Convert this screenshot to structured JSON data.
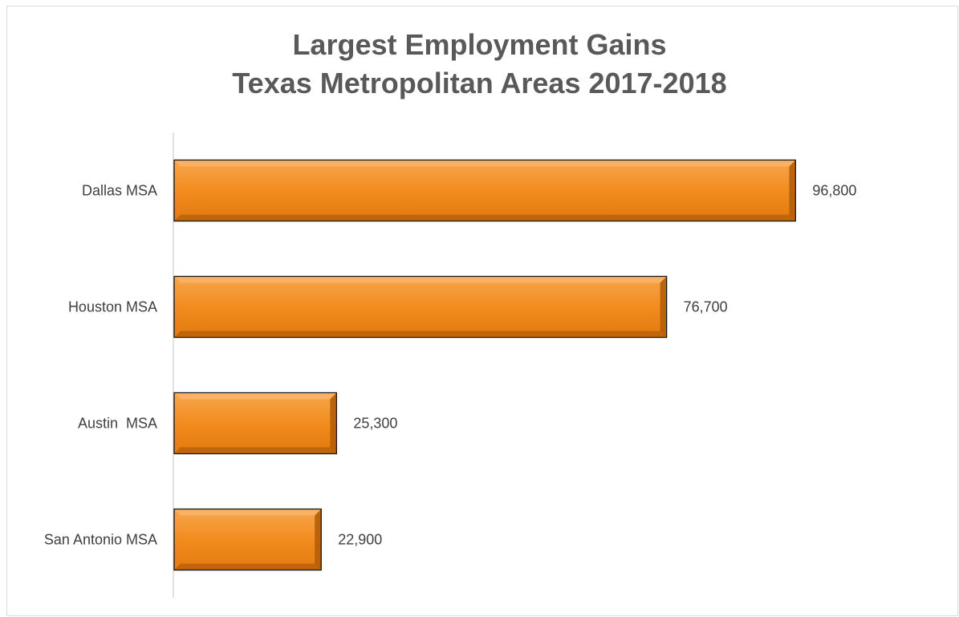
{
  "chart_data": {
    "type": "bar",
    "orientation": "horizontal",
    "title": [
      "Largest Employment Gains",
      "Texas Metropolitan Areas 2017-2018"
    ],
    "categories": [
      "Dallas MSA",
      "Houston MSA",
      "Austin  MSA",
      "San Antonio MSA"
    ],
    "values": [
      96800,
      76700,
      25300,
      22900
    ],
    "data_labels": [
      "96,800",
      "76,700",
      "25,300",
      "22,900"
    ],
    "xlabel": "",
    "ylabel": "",
    "xlim": [
      0,
      100000
    ],
    "grid": false,
    "legend": "none",
    "colors": {
      "bar_fill": "#f28c1e",
      "bar_light": "#f9b46a",
      "bar_dark": "#b35e0a",
      "bar_outline": "#1a1a1a",
      "axis": "#d9d9d9",
      "title": "#595959",
      "text": "#404040"
    }
  }
}
